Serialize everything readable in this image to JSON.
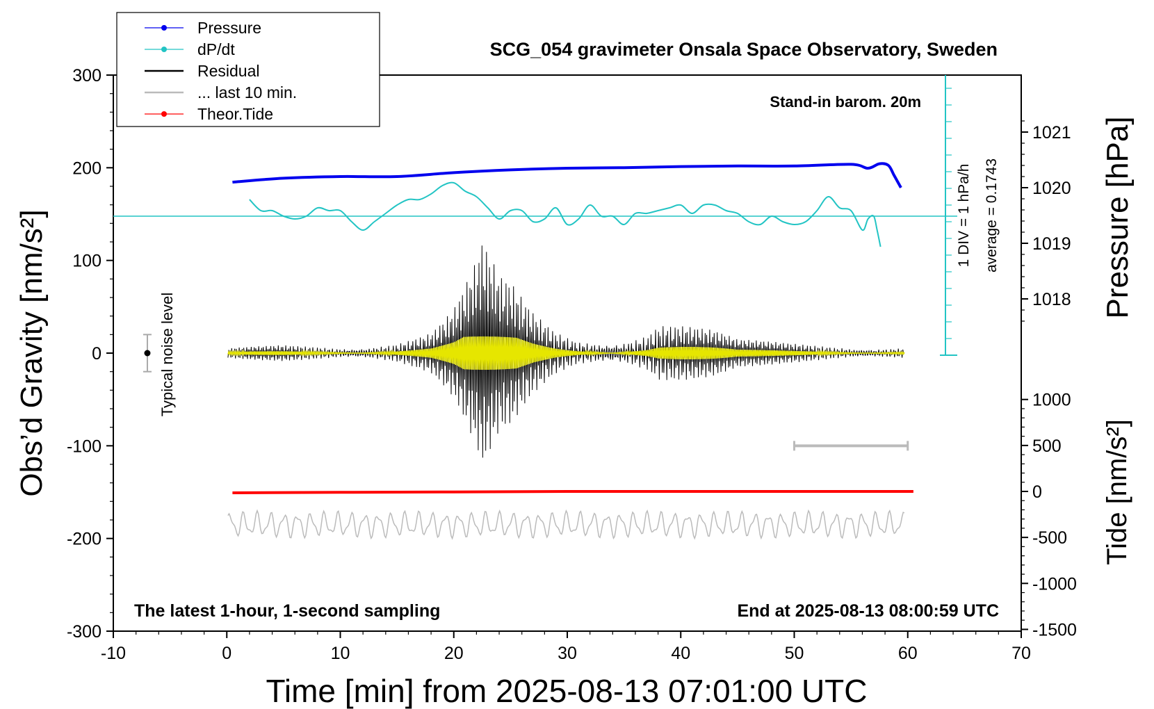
{
  "chart_data": {
    "type": "line",
    "title": "SCG_054 gravimeter Onsala Space Observatory, Sweden",
    "xlabel": "Time [min] from 2025-08-13 07:01:00 UTC",
    "ylabel": "Obs’d Gravity [nm/s²]",
    "y2_pressure_label": "Pressure [hPa]",
    "y2_tide_label": "Tide [nm/s²]",
    "xlim": [
      -10,
      70
    ],
    "ylim": [
      -300,
      300
    ],
    "x_ticks": [
      "-10",
      "0",
      "10",
      "20",
      "30",
      "40",
      "50",
      "60",
      "70"
    ],
    "y_ticks": [
      "300",
      "200",
      "100",
      "0",
      "-100",
      "-200",
      "-300"
    ],
    "pressure_ticks": [
      "1021",
      "1020",
      "1019",
      "1018"
    ],
    "tide_ticks": [
      "1000",
      "500",
      "0",
      "-500",
      "-1000",
      "-1500"
    ],
    "annotations": {
      "top_right": "Stand-in barom. 20m",
      "bottom_left": "The latest 1-hour, 1-second sampling",
      "bottom_right": "End at 2025-08-13 08:00:59 UTC",
      "noise_label": "Typical noise level",
      "div_label": "1 DIV = 1 hPa/h",
      "average_label": "average = 0.1743"
    },
    "legend": [
      {
        "label": "Pressure",
        "color": "#0000ee",
        "marker": true
      },
      {
        "label": "dP/dt",
        "color": "#22c4c4",
        "marker": true
      },
      {
        "label": "Residual",
        "color": "#000000",
        "marker": false
      },
      {
        "label": "... last 10 min.",
        "color": "#bbbbbb",
        "marker": false
      },
      {
        "label": "Theor.Tide",
        "color": "#ff0000",
        "marker": true
      }
    ],
    "legend_position": "top-left",
    "colors": {
      "pressure": "#0000ee",
      "dpdt": "#22c4c4",
      "residual": "#000000",
      "residual_smooth": "#e6e600",
      "last10": "#bbbbbb",
      "tide": "#ff0000"
    },
    "series": [
      {
        "name": "Pressure",
        "axis": "pressure",
        "x": [
          0.5,
          5,
          10,
          15,
          20,
          25,
          30,
          35,
          40,
          45,
          50,
          55,
          56.5,
          57.5,
          58.3,
          58.8,
          59.4
        ],
        "y": [
          1020.1,
          1020.17,
          1020.2,
          1020.2,
          1020.27,
          1020.32,
          1020.35,
          1020.36,
          1020.38,
          1020.39,
          1020.39,
          1020.42,
          1020.35,
          1020.43,
          1020.4,
          1020.22,
          1020.0
        ]
      },
      {
        "name": "dP/dt",
        "axis": "pressure",
        "x": [
          2,
          3,
          4,
          5,
          6,
          7,
          8,
          9,
          10,
          11,
          12,
          13,
          14,
          15,
          16,
          17,
          18,
          19,
          20,
          21,
          22,
          23,
          24,
          25,
          26,
          27,
          28,
          29,
          30,
          31,
          32,
          33,
          34,
          35,
          36,
          37,
          38,
          39,
          40,
          41,
          42,
          43,
          44,
          45,
          46,
          47,
          48,
          49,
          50,
          51,
          52,
          53,
          54,
          55,
          56,
          56.5,
          57,
          57.3,
          57.6
        ],
        "y": [
          0.3,
          0.1,
          0.1,
          0.0,
          -0.05,
          0.0,
          0.15,
          0.1,
          0.1,
          -0.1,
          -0.25,
          -0.1,
          0.05,
          0.2,
          0.3,
          0.3,
          0.4,
          0.55,
          0.6,
          0.45,
          0.35,
          0.15,
          -0.05,
          0.1,
          0.1,
          -0.1,
          -0.05,
          0.15,
          -0.15,
          -0.05,
          0.2,
          0.0,
          0.0,
          -0.15,
          0.05,
          0.05,
          0.1,
          0.15,
          0.2,
          0.05,
          0.2,
          0.2,
          0.1,
          0.05,
          -0.1,
          -0.15,
          0.0,
          -0.1,
          -0.15,
          -0.1,
          0.1,
          0.35,
          0.15,
          0.1,
          -0.25,
          -0.05,
          0.0,
          -0.25,
          -0.55
        ]
      },
      {
        "name": "Residual",
        "axis": "gravity",
        "x": [
          0,
          5,
          10,
          15,
          18,
          20,
          21,
          22,
          22.5,
          23,
          24,
          25,
          26,
          27,
          29,
          31,
          35,
          37,
          38,
          40,
          43,
          45,
          50,
          55,
          60
        ],
        "y_envelope": [
          5,
          10,
          10,
          15,
          25,
          50,
          75,
          100,
          122,
          110,
          85,
          80,
          65,
          50,
          30,
          20,
          25,
          30,
          42,
          35,
          25,
          15,
          12,
          10,
          8
        ]
      },
      {
        "name": "... last 10 min.",
        "axis": "gravity",
        "x": [
          0,
          60
        ],
        "y_center": [
          -185,
          -185
        ],
        "amplitude": 15
      },
      {
        "name": "Theor.Tide",
        "axis": "tide",
        "x": [
          0.5,
          10,
          20,
          30,
          40,
          50,
          60.5
        ],
        "y": [
          -15,
          -10,
          -5,
          0,
          0,
          0,
          0
        ]
      }
    ],
    "noise_bar": {
      "x": -7,
      "y": 0,
      "range": [
        -20,
        20
      ]
    },
    "scale_bar": {
      "x_start": 50,
      "x_end": 60,
      "y": -100
    }
  }
}
